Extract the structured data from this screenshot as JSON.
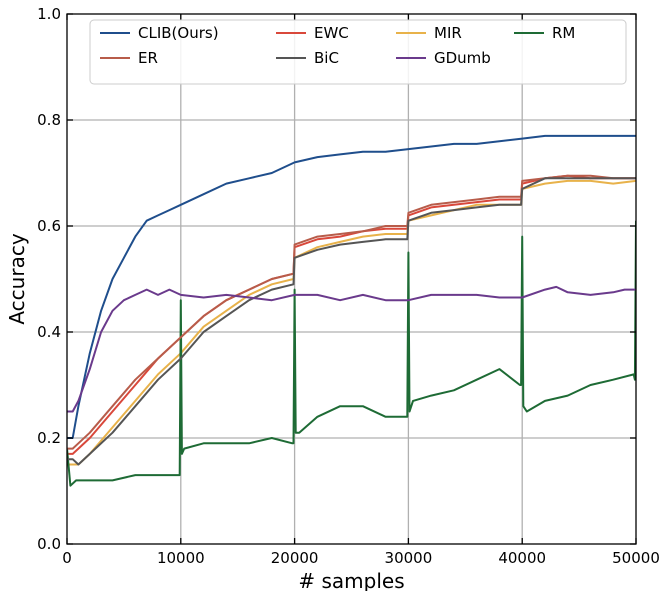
{
  "chart_data": {
    "type": "line",
    "xlabel": "# samples",
    "ylabel": "Accuracy",
    "xlim": [
      0,
      50000
    ],
    "ylim": [
      0.0,
      1.0
    ],
    "x_ticks": [
      0,
      10000,
      20000,
      30000,
      40000,
      50000
    ],
    "x_tick_labels": [
      "0",
      "10000",
      "20000",
      "30000",
      "40000",
      "50000"
    ],
    "y_ticks": [
      0.0,
      0.2,
      0.4,
      0.6,
      0.8,
      1.0
    ],
    "y_tick_labels": [
      "0.0",
      "0.2",
      "0.4",
      "0.6",
      "0.8",
      "1.0"
    ],
    "grid": true,
    "legend": {
      "placement": "top",
      "columns": 4
    },
    "series": [
      {
        "name": "CLIB(Ours)",
        "color": "#1f4e8c",
        "x": [
          0,
          500,
          1000,
          2000,
          3000,
          4000,
          5000,
          6000,
          7000,
          8000,
          9000,
          10000,
          12000,
          14000,
          16000,
          18000,
          20000,
          22000,
          24000,
          26000,
          28000,
          30000,
          32000,
          34000,
          36000,
          38000,
          40000,
          42000,
          44000,
          46000,
          48000,
          50000
        ],
        "y": [
          0.2,
          0.2,
          0.26,
          0.36,
          0.44,
          0.5,
          0.54,
          0.58,
          0.61,
          0.62,
          0.63,
          0.64,
          0.66,
          0.68,
          0.69,
          0.7,
          0.72,
          0.73,
          0.735,
          0.74,
          0.74,
          0.745,
          0.75,
          0.755,
          0.755,
          0.76,
          0.765,
          0.77,
          0.77,
          0.77,
          0.77,
          0.77
        ]
      },
      {
        "name": "EWC",
        "color": "#d9483b",
        "x": [
          0,
          500,
          1000,
          2000,
          4000,
          6000,
          8000,
          10000,
          12000,
          14000,
          16000,
          18000,
          19900,
          20000,
          22000,
          24000,
          26000,
          28000,
          29900,
          30000,
          32000,
          34000,
          36000,
          38000,
          39900,
          40000,
          42000,
          44000,
          46000,
          48000,
          50000
        ],
        "y": [
          0.17,
          0.17,
          0.18,
          0.2,
          0.25,
          0.3,
          0.35,
          0.39,
          0.43,
          0.46,
          0.48,
          0.5,
          0.51,
          0.56,
          0.575,
          0.58,
          0.59,
          0.595,
          0.595,
          0.62,
          0.635,
          0.64,
          0.645,
          0.65,
          0.65,
          0.68,
          0.69,
          0.695,
          0.69,
          0.69,
          0.69
        ]
      },
      {
        "name": "MIR",
        "color": "#e8b24a",
        "x": [
          0,
          500,
          1000,
          2000,
          4000,
          6000,
          8000,
          10000,
          12000,
          14000,
          16000,
          18000,
          19900,
          20000,
          22000,
          24000,
          26000,
          28000,
          29900,
          30000,
          32000,
          34000,
          36000,
          38000,
          39900,
          40000,
          42000,
          44000,
          46000,
          48000,
          50000
        ],
        "y": [
          0.15,
          0.15,
          0.15,
          0.17,
          0.22,
          0.27,
          0.32,
          0.36,
          0.41,
          0.44,
          0.47,
          0.49,
          0.5,
          0.54,
          0.56,
          0.57,
          0.58,
          0.585,
          0.585,
          0.61,
          0.62,
          0.63,
          0.64,
          0.64,
          0.64,
          0.67,
          0.68,
          0.685,
          0.685,
          0.68,
          0.685
        ]
      },
      {
        "name": "RM",
        "color": "#1e6b35",
        "x": [
          0,
          300,
          800,
          2000,
          4000,
          6000,
          8000,
          9500,
          9900,
          10000,
          10100,
          10300,
          12000,
          14000,
          16000,
          18000,
          19800,
          19900,
          20000,
          20100,
          20400,
          22000,
          24000,
          26000,
          28000,
          29800,
          29900,
          30000,
          30100,
          30400,
          32000,
          34000,
          36000,
          38000,
          39800,
          39900,
          40000,
          40100,
          40400,
          42000,
          44000,
          46000,
          48000,
          49800,
          49900,
          50000
        ],
        "y": [
          0.18,
          0.11,
          0.12,
          0.12,
          0.12,
          0.13,
          0.13,
          0.13,
          0.13,
          0.46,
          0.17,
          0.18,
          0.19,
          0.19,
          0.19,
          0.2,
          0.19,
          0.19,
          0.48,
          0.21,
          0.21,
          0.24,
          0.26,
          0.26,
          0.24,
          0.24,
          0.24,
          0.55,
          0.25,
          0.27,
          0.28,
          0.29,
          0.31,
          0.33,
          0.3,
          0.3,
          0.58,
          0.26,
          0.25,
          0.27,
          0.28,
          0.3,
          0.31,
          0.32,
          0.31,
          0.61
        ]
      },
      {
        "name": "ER",
        "color": "#b85c4a",
        "x": [
          0,
          500,
          1000,
          2000,
          4000,
          6000,
          8000,
          10000,
          12000,
          14000,
          16000,
          18000,
          19900,
          20000,
          22000,
          24000,
          26000,
          28000,
          29900,
          30000,
          32000,
          34000,
          36000,
          38000,
          39900,
          40000,
          42000,
          44000,
          46000,
          48000,
          50000
        ],
        "y": [
          0.18,
          0.18,
          0.19,
          0.21,
          0.26,
          0.31,
          0.35,
          0.39,
          0.43,
          0.46,
          0.48,
          0.5,
          0.51,
          0.565,
          0.58,
          0.585,
          0.59,
          0.6,
          0.6,
          0.625,
          0.64,
          0.645,
          0.65,
          0.655,
          0.655,
          0.685,
          0.69,
          0.695,
          0.695,
          0.69,
          0.69
        ]
      },
      {
        "name": "BiC",
        "color": "#555555",
        "x": [
          0,
          500,
          1000,
          2000,
          4000,
          6000,
          8000,
          10000,
          12000,
          14000,
          16000,
          18000,
          19900,
          20000,
          22000,
          24000,
          26000,
          28000,
          29900,
          30000,
          32000,
          34000,
          36000,
          38000,
          39900,
          40000,
          42000,
          44000,
          46000,
          48000,
          50000
        ],
        "y": [
          0.16,
          0.16,
          0.15,
          0.17,
          0.21,
          0.26,
          0.31,
          0.35,
          0.4,
          0.43,
          0.46,
          0.48,
          0.49,
          0.54,
          0.555,
          0.565,
          0.57,
          0.575,
          0.575,
          0.61,
          0.625,
          0.63,
          0.635,
          0.64,
          0.64,
          0.67,
          0.69,
          0.69,
          0.69,
          0.69,
          0.69
        ]
      },
      {
        "name": "GDumb",
        "color": "#6a3a8c",
        "x": [
          0,
          500,
          1000,
          2000,
          3000,
          4000,
          5000,
          6000,
          7000,
          8000,
          9000,
          10000,
          12000,
          14000,
          16000,
          18000,
          20000,
          22000,
          24000,
          26000,
          28000,
          30000,
          32000,
          34000,
          36000,
          38000,
          40000,
          42000,
          43000,
          44000,
          46000,
          48000,
          49000,
          50000
        ],
        "y": [
          0.25,
          0.25,
          0.27,
          0.33,
          0.4,
          0.44,
          0.46,
          0.47,
          0.48,
          0.47,
          0.48,
          0.47,
          0.465,
          0.47,
          0.465,
          0.46,
          0.47,
          0.47,
          0.46,
          0.47,
          0.46,
          0.46,
          0.47,
          0.47,
          0.47,
          0.465,
          0.465,
          0.48,
          0.485,
          0.475,
          0.47,
          0.475,
          0.48,
          0.48
        ]
      }
    ]
  }
}
